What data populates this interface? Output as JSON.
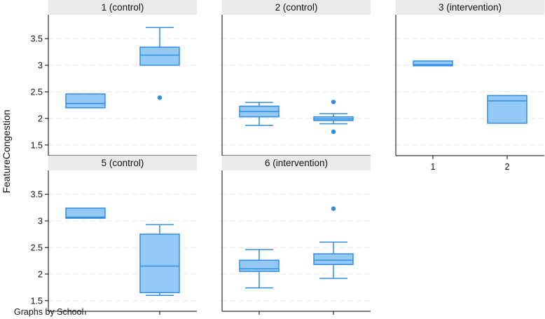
{
  "note": "Graphs by School",
  "ylabel": "FeatureCongestion",
  "colors": {
    "box_fill": "#94c8f5",
    "box_stroke": "#2f8de4",
    "header_bg": "#eaeaea",
    "grid": "#e3e3e3"
  },
  "chart_data": {
    "type": "box",
    "title": "",
    "ylabel": "FeatureCongestion",
    "xlabel": "",
    "ylim": [
      1.3,
      3.95
    ],
    "yticks": [
      1.5,
      2,
      2.5,
      3,
      3.5
    ],
    "ytick_labels": [
      "1.5",
      "2",
      "2.5",
      "3",
      "3.5"
    ],
    "grid": true,
    "categories": [
      "1",
      "2"
    ],
    "panels": [
      {
        "title": "1 (control)",
        "boxes": [
          {
            "x": "1",
            "whisker_low": 2.2,
            "q1": 2.2,
            "median": 2.28,
            "q3": 2.46,
            "whisker_high": 2.46,
            "outliers": []
          },
          {
            "x": "2",
            "whisker_low": 3.0,
            "q1": 3.0,
            "median": 3.19,
            "q3": 3.34,
            "whisker_high": 3.71,
            "outliers": [
              2.39
            ]
          }
        ]
      },
      {
        "title": "2 (control)",
        "boxes": [
          {
            "x": "1",
            "whisker_low": 1.87,
            "q1": 2.03,
            "median": 2.13,
            "q3": 2.23,
            "whisker_high": 2.3,
            "outliers": []
          },
          {
            "x": "2",
            "whisker_low": 1.9,
            "q1": 1.96,
            "median": 1.99,
            "q3": 2.03,
            "whisker_high": 2.09,
            "outliers": [
              2.31,
              1.75
            ]
          }
        ]
      },
      {
        "title": "3 (intervention)",
        "boxes": [
          {
            "x": "1",
            "whisker_low": 2.99,
            "q1": 2.99,
            "median": 3.01,
            "q3": 3.08,
            "whisker_high": 3.08,
            "outliers": []
          },
          {
            "x": "2",
            "whisker_low": 1.91,
            "q1": 1.91,
            "median": 2.33,
            "q3": 2.43,
            "whisker_high": 2.43,
            "outliers": []
          }
        ]
      },
      {
        "title": "5 (control)",
        "boxes": [
          {
            "x": "1",
            "whisker_low": 3.05,
            "q1": 3.05,
            "median": 3.07,
            "q3": 3.24,
            "whisker_high": 3.24,
            "outliers": []
          },
          {
            "x": "2",
            "whisker_low": 1.6,
            "q1": 1.65,
            "median": 2.15,
            "q3": 2.75,
            "whisker_high": 2.93,
            "outliers": []
          }
        ]
      },
      {
        "title": "6 (intervention)",
        "boxes": [
          {
            "x": "1",
            "whisker_low": 1.74,
            "q1": 2.05,
            "median": 2.1,
            "q3": 2.26,
            "whisker_high": 2.46,
            "outliers": []
          },
          {
            "x": "2",
            "whisker_low": 1.92,
            "q1": 2.18,
            "median": 2.26,
            "q3": 2.38,
            "whisker_high": 2.6,
            "outliers": [
              3.23
            ]
          }
        ]
      }
    ]
  }
}
